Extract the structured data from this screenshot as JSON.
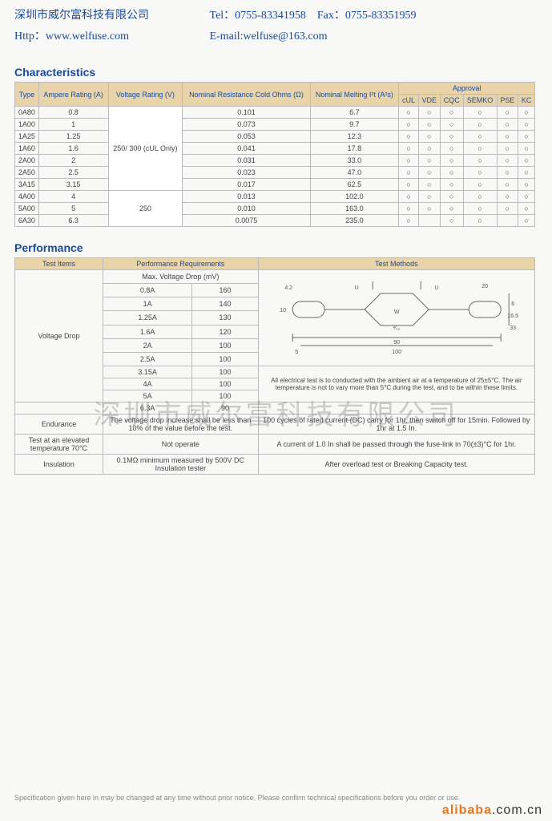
{
  "header": {
    "company": "深圳市威尔富科技有限公司",
    "tel": "Tel：0755-83341958",
    "fax": "Fax：0755-83351959",
    "http": "Http：www.welfuse.com",
    "email": "E-mail:welfuse@163.com"
  },
  "characteristics": {
    "title": "Characteristics",
    "headers": {
      "type": "Type",
      "ampere": "Ampere Rating (A)",
      "voltage": "Voltage Rating (V)",
      "resistance": "Nominal Resistance Cold Ohms (Ω)",
      "melting": "Nominal Melting I²t (A²s)",
      "approval": "Approval",
      "approval_cols": [
        "cUL",
        "VDE",
        "CQC",
        "SEMKO",
        "PSE",
        "KC"
      ]
    },
    "voltage_group1": "250/ 300 (cUL Only)",
    "voltage_group2": "250",
    "rows": [
      {
        "type": "0A80",
        "ampere": "0.8",
        "res": "0.101",
        "melt": "6.7",
        "appr": [
          "○",
          "○",
          "○",
          "○",
          "○",
          "○"
        ]
      },
      {
        "type": "1A00",
        "ampere": "1",
        "res": "0.073",
        "melt": "9.7",
        "appr": [
          "○",
          "○",
          "○",
          "○",
          "○",
          "○"
        ]
      },
      {
        "type": "1A25",
        "ampere": "1.25",
        "res": "0.053",
        "melt": "12.3",
        "appr": [
          "○",
          "○",
          "○",
          "○",
          "○",
          "○"
        ]
      },
      {
        "type": "1A60",
        "ampere": "1.6",
        "res": "0.041",
        "melt": "17.8",
        "appr": [
          "○",
          "○",
          "○",
          "○",
          "○",
          "○"
        ]
      },
      {
        "type": "2A00",
        "ampere": "2",
        "res": "0.031",
        "melt": "33.0",
        "appr": [
          "○",
          "○",
          "○",
          "○",
          "○",
          "○"
        ]
      },
      {
        "type": "2A50",
        "ampere": "2.5",
        "res": "0.023",
        "melt": "47.0",
        "appr": [
          "○",
          "○",
          "○",
          "○",
          "○",
          "○"
        ]
      },
      {
        "type": "3A15",
        "ampere": "3.15",
        "res": "0.017",
        "melt": "62.5",
        "appr": [
          "○",
          "○",
          "○",
          "○",
          "○",
          "○"
        ]
      },
      {
        "type": "4A00",
        "ampere": "4",
        "res": "0.013",
        "melt": "102.0",
        "appr": [
          "○",
          "○",
          "○",
          "○",
          "○",
          "○"
        ]
      },
      {
        "type": "5A00",
        "ampere": "5",
        "res": "0.010",
        "melt": "163.0",
        "appr": [
          "○",
          "○",
          "○",
          "○",
          "○",
          "○"
        ]
      },
      {
        "type": "6A30",
        "ampere": "6.3",
        "res": "0.0075",
        "melt": "235.0",
        "appr": [
          "○",
          "",
          "○",
          "○",
          "",
          "○"
        ]
      }
    ]
  },
  "performance": {
    "title": "Performance",
    "headers": {
      "test_items": "Test Items",
      "requirements": "Performance Requirements",
      "methods": "Test Methods",
      "max_vd": "Max. Voltage Drop (mV)"
    },
    "voltage_drop_label": "Voltage Drop",
    "vd_rows": [
      {
        "a": "0.8A",
        "mv": "160"
      },
      {
        "a": "1A",
        "mv": "140"
      },
      {
        "a": "1.25A",
        "mv": "130"
      },
      {
        "a": "1.6A",
        "mv": "120"
      },
      {
        "a": "2A",
        "mv": "100"
      },
      {
        "a": "2.5A",
        "mv": "100"
      },
      {
        "a": "3.15A",
        "mv": "100"
      },
      {
        "a": "4A",
        "mv": "100"
      },
      {
        "a": "5A",
        "mv": "100"
      },
      {
        "a": "6.3A",
        "mv": "90"
      }
    ],
    "methods_note": "All electrical test is to conducted with the ambient air at a temperature of 25±5°C. The air temperature is not to vary more than 5°C during the test, and to be within these limits.",
    "endurance_label": "Endurance",
    "endurance_req": "The voltage drop increase shall be less than 10% of the value before the test.",
    "endurance_method": "100 cycles of rated current (DC) carry for 1hr, then switch off for 15min. Followed by 1hr at 1.5 In.",
    "elevated_label": "Test at an elevated temperature 70°C",
    "elevated_req": "Not operate",
    "elevated_method": "A current of 1.0 In shall be passed through the fuse-link in 70(±3)°C for 1hr.",
    "insulation_label": "Insulation",
    "insulation_req": "0.1MΩ minimum measured by 500V DC Insulation tester",
    "insulation_method": "After overload test or Breaking Capacity test.",
    "diagram": {
      "labels": {
        "d42": "4.2",
        "u": "U",
        "d20": "20",
        "d10": "10",
        "d6": "6",
        "d165": "16.5",
        "d33": "33",
        "w": "W",
        "d5": "5",
        "d90": "90",
        "d100": "100",
        "rc": "²⁄₁₀"
      }
    }
  },
  "watermark": "深圳市威尔富科技有限公司",
  "footer_note": "Specification given here in may be changed at any time without prior notice. Please confirm technical specifications before you order or use.",
  "alibaba": {
    "p1": "alibaba",
    "p2": ".com.cn"
  },
  "colors": {
    "header_text": "#1a4a9c",
    "th_bg": "#e8d4a8",
    "border": "#bbbbbb",
    "body_bg": "#f8f8f6"
  }
}
